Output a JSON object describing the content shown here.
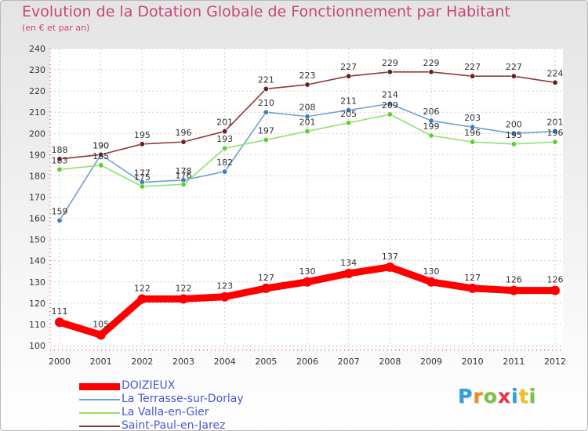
{
  "chart_data": {
    "type": "line",
    "title": "Evolution de la Dotation Globale de Fonctionnement par Habitant",
    "subtitle": "(en € et par an)",
    "xlabel": "",
    "ylabel": "",
    "x": [
      "2000",
      "2001",
      "2002",
      "2003",
      "2004",
      "2005",
      "2006",
      "2007",
      "2008",
      "2009",
      "2010",
      "2011",
      "2012"
    ],
    "ylim": [
      100,
      240
    ],
    "yticks": [
      100,
      110,
      120,
      130,
      140,
      150,
      160,
      170,
      180,
      190,
      200,
      210,
      220,
      230,
      240
    ],
    "grid": true,
    "legend_position": "bottom-left",
    "series": [
      {
        "name": "DOIZIEUX",
        "color": "#ff0000",
        "marker": "#ff0000",
        "emphasis": true,
        "values": [
          111,
          105,
          122,
          122,
          123,
          127,
          130,
          134,
          137,
          130,
          127,
          126,
          126
        ]
      },
      {
        "name": "La Terrasse-sur-Dorlay",
        "color": "#6fa0d0",
        "marker": "#3f7cc0",
        "values": [
          159,
          190,
          177,
          178,
          182,
          210,
          208,
          211,
          214,
          206,
          203,
          200,
          201
        ]
      },
      {
        "name": "La Valla-en-Gier",
        "color": "#90e070",
        "marker": "#60cc30",
        "values": [
          183,
          185,
          175,
          176,
          193,
          197,
          201,
          205,
          209,
          199,
          196,
          195,
          196
        ]
      },
      {
        "name": "Saint-Paul-en-Jarez",
        "color": "#8c3a3a",
        "marker": "#6b1e22",
        "values": [
          188,
          190,
          195,
          196,
          201,
          221,
          223,
          227,
          229,
          229,
          227,
          227,
          224
        ]
      }
    ]
  },
  "logo": {
    "letters": [
      "P",
      "r",
      "o",
      "x",
      "i",
      "t",
      "i"
    ],
    "colors": [
      "#2aa0dc",
      "#f08a1c",
      "#7cc242",
      "#e8344a",
      "#2aa0dc",
      "#f0c01c",
      "#7cc242"
    ]
  }
}
